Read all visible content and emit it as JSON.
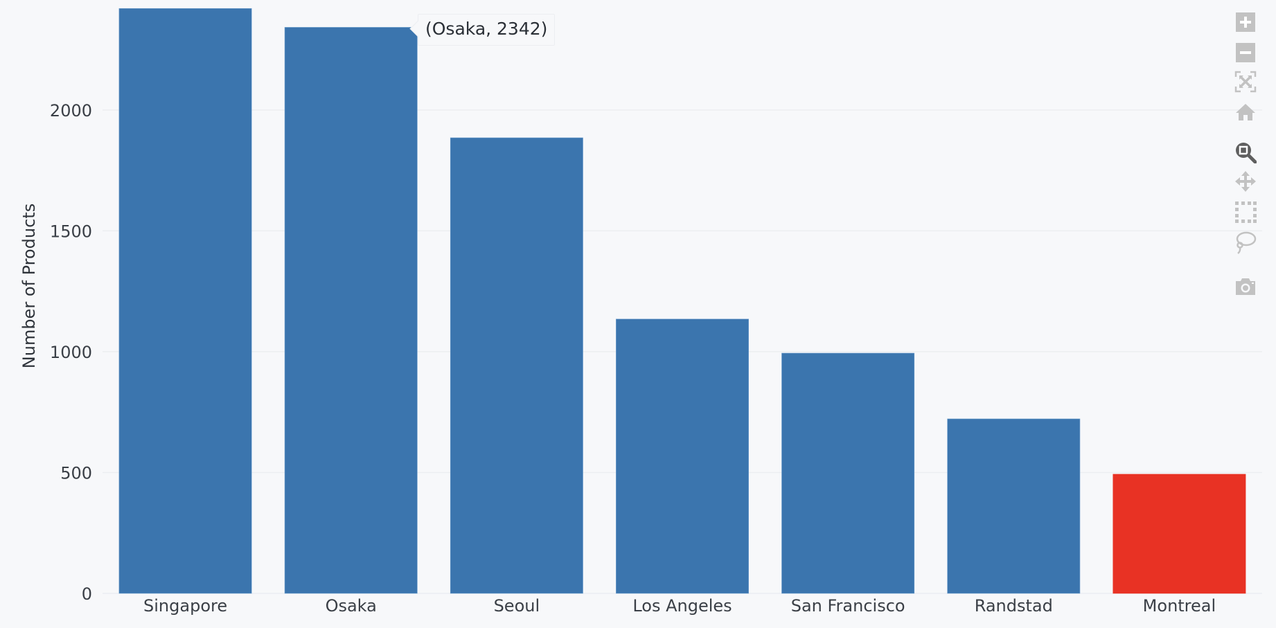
{
  "chart_data": {
    "type": "bar",
    "title": "",
    "xlabel": "",
    "ylabel": "Number of Products",
    "categories": [
      "Singapore",
      "Osaka",
      "Seoul",
      "Los Angeles",
      "San Francisco",
      "Randstad",
      "Montreal"
    ],
    "values": [
      2420,
      2342,
      1885,
      1135,
      994,
      722,
      493
    ],
    "colors": [
      "#3b75ae",
      "#3b75ae",
      "#3b75ae",
      "#3b75ae",
      "#3b75ae",
      "#3b75ae",
      "#e83224"
    ],
    "highlight": {
      "category": "Montreal",
      "color": "#e83224"
    },
    "ylim": [
      0,
      2455
    ],
    "yticks": [
      0,
      500,
      1000,
      1500,
      2000
    ],
    "grid": true,
    "legend": null
  },
  "tooltip": {
    "text": "(Osaka, 2342)",
    "category": "Osaka",
    "value": 2342
  },
  "modebar": {
    "buttons": [
      {
        "name": "zoom-in-icon",
        "title": "Zoom in",
        "active": false
      },
      {
        "name": "zoom-out-icon",
        "title": "Zoom out",
        "active": false
      },
      {
        "name": "autoscale-icon",
        "title": "Autoscale",
        "active": false
      },
      {
        "name": "reset-axes-icon",
        "title": "Reset axes",
        "active": false
      },
      {
        "name": "zoom-icon",
        "title": "Zoom",
        "active": true
      },
      {
        "name": "pan-icon",
        "title": "Pan",
        "active": false
      },
      {
        "name": "box-select-icon",
        "title": "Box Select",
        "active": false
      },
      {
        "name": "lasso-select-icon",
        "title": "Lasso Select",
        "active": false
      },
      {
        "name": "camera-icon",
        "title": "Download plot as a png",
        "active": false
      }
    ]
  },
  "colors": {
    "background": "#f7f8fa",
    "bar": "#3b75ae",
    "highlight": "#e83224",
    "grid": "#eceef1",
    "text": "#2a2f36",
    "icon": "#c2c2c2",
    "icon_active": "#5f5f5f"
  }
}
